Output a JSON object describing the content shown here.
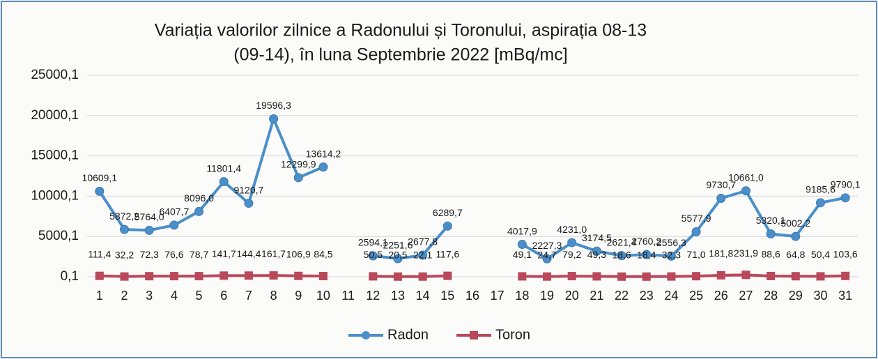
{
  "chart_data": {
    "type": "line",
    "title": [
      "Variația valorilor zilnice a Radonului și Toronului, aspirația 08-13",
      "(09-14),  în luna Septembrie 2022 [mBq/mc]"
    ],
    "categories": [
      "1",
      "2",
      "3",
      "4",
      "5",
      "6",
      "7",
      "8",
      "9",
      "10",
      "11",
      "12",
      "13",
      "14",
      "15",
      "16",
      "17",
      "18",
      "19",
      "20",
      "21",
      "22",
      "23",
      "24",
      "25",
      "26",
      "27",
      "28",
      "29",
      "30",
      "31"
    ],
    "series": [
      {
        "name": "Radon",
        "color": "#4a8fc9",
        "values": [
          10609.1,
          5872.2,
          5764.0,
          6407.7,
          8096.0,
          11801.4,
          9120.7,
          19596.3,
          12299.9,
          13614.2,
          null,
          2594.1,
          2251.6,
          2677.8,
          6289.7,
          null,
          null,
          4017.9,
          2227.3,
          4231.0,
          3174.5,
          2621.4,
          2760.2,
          2556.3,
          5577.9,
          9730.7,
          10661.0,
          5320.1,
          5002.2,
          9185.6,
          9790.1
        ],
        "value_labels": [
          "10609,1",
          "5872,2",
          "5764,0",
          "6407,7",
          "8096,0",
          "11801,4",
          "9120,7",
          "19596,3",
          "12299,9",
          "13614,2",
          null,
          "2594,1",
          "2251,6",
          "2677,8",
          "6289,7",
          null,
          null,
          "4017,9",
          "2227,3",
          "4231,0",
          "3174,5",
          "2621,4",
          "2760,2",
          "2556,3",
          "5577,9",
          "9730,7",
          "10661,0",
          "5320,1",
          "5002,2",
          "9185,6",
          "9790,1"
        ]
      },
      {
        "name": "Toron",
        "color": "#b9485a",
        "values": [
          111.4,
          32.2,
          72.3,
          76.6,
          78.7,
          141.7,
          144.4,
          161.7,
          106.9,
          84.5,
          null,
          50.5,
          20.5,
          22.1,
          117.6,
          null,
          null,
          49.1,
          24.7,
          79.2,
          49.3,
          18.6,
          18.4,
          32.3,
          71.0,
          181.8,
          231.9,
          88.6,
          64.8,
          50.4,
          103.6
        ],
        "value_labels": [
          "111,4",
          "32,2",
          "72,3",
          "76,6",
          "78,7",
          "141,7",
          "144,4",
          "161,7",
          "106,9",
          "84,5",
          null,
          "50,5",
          "20,5",
          "22,1",
          "117,6",
          null,
          null,
          "49,1",
          "24,7",
          "79,2",
          "49,3",
          "18,6",
          "18,4",
          "32,3",
          "71,0",
          "181,8",
          "231,9",
          "88,6",
          "64,8",
          "50,4",
          "103,6"
        ]
      }
    ],
    "ylim": [
      0.1,
      25000.1
    ],
    "yticks": [
      {
        "value": 0.1,
        "label": "0,1"
      },
      {
        "value": 5000.1,
        "label": "5000,1"
      },
      {
        "value": 10000.1,
        "label": "10000,1"
      },
      {
        "value": 15000.1,
        "label": "15000,1"
      },
      {
        "value": 20000.1,
        "label": "20000,1"
      },
      {
        "value": 25000.1,
        "label": "25000,1"
      }
    ],
    "grid": true,
    "legend": "bottom"
  }
}
